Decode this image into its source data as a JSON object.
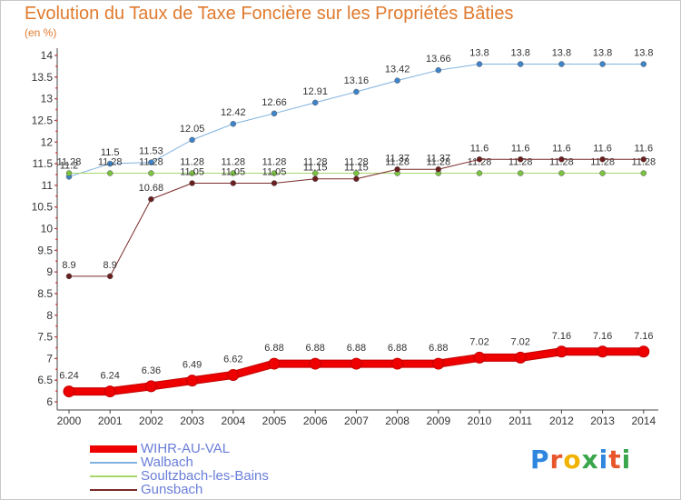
{
  "header": {
    "title": "Evolution du Taux de Taxe Foncière sur les Propriétés Bâties",
    "subtitle": "(en %)"
  },
  "logo": {
    "text": "Proxiti",
    "letter_colors": [
      "#2e86de",
      "#e8572b",
      "#f0b400",
      "#3aa64b",
      "#2e86de",
      "#e8572b",
      "#3aa64b"
    ]
  },
  "chart_data": {
    "type": "line",
    "title": "Evolution du Taux de Taxe Foncière sur les Propriétés Bâties",
    "subtitle": "(en %)",
    "x": [
      "2000",
      "2001",
      "2002",
      "2003",
      "2004",
      "2005",
      "2006",
      "2007",
      "2008",
      "2009",
      "2010",
      "2011",
      "2012",
      "2013",
      "2014"
    ],
    "ylim": [
      6,
      14
    ],
    "yticks": [
      "6",
      "6.5",
      "7",
      "7.5",
      "8",
      "8.5",
      "9",
      "9.5",
      "10",
      "10.5",
      "11",
      "11.5",
      "12",
      "12.5",
      "13",
      "13.5",
      "14"
    ],
    "grid": false,
    "legend_position": "bottom-left",
    "series": [
      {
        "name": "WIHR-AU-VAL",
        "color": "#ee0000",
        "marker_color": "#ee0000",
        "line_width": 7,
        "values": [
          6.24,
          6.24,
          6.36,
          6.49,
          6.62,
          6.88,
          6.88,
          6.88,
          6.88,
          6.88,
          7.02,
          7.02,
          7.16,
          7.16,
          7.16
        ],
        "labels": [
          "6.24",
          "6.24",
          "6.36",
          "6.49",
          "6.62",
          "6.88",
          "6.88",
          "6.88",
          "6.88",
          "6.88",
          "7.02",
          "7.02",
          "7.16",
          "7.16",
          "7.16"
        ]
      },
      {
        "name": "Walbach",
        "color": "#7fb2e0",
        "marker_color": "#3f84c9",
        "line_width": 1,
        "values": [
          11.2,
          11.5,
          11.53,
          12.05,
          12.42,
          12.66,
          12.91,
          13.16,
          13.42,
          13.66,
          13.8,
          13.8,
          13.8,
          13.8,
          13.8
        ],
        "labels": [
          "11.2",
          "11.5",
          "11.53",
          "12.05",
          "12.42",
          "12.66",
          "12.91",
          "13.16",
          "13.42",
          "13.66",
          "13.8",
          "13.8",
          "13.8",
          "13.8",
          "13.8"
        ]
      },
      {
        "name": "Soultzbach-les-Bains",
        "color": "#a8d86a",
        "marker_color": "#7cc242",
        "line_width": 1,
        "values": [
          11.28,
          11.28,
          11.28,
          11.28,
          11.28,
          11.28,
          11.28,
          11.28,
          11.28,
          11.28,
          11.28,
          11.28,
          11.28,
          11.28,
          11.28
        ],
        "labels": [
          "11.28",
          "11.28",
          "11.28",
          "11.28",
          "11.28",
          "11.28",
          "11.28",
          "11.28",
          "11.28",
          "11.28",
          "11.28",
          "11.28",
          "11.28",
          "11.28",
          "11.28"
        ]
      },
      {
        "name": "Gunsbach",
        "color": "#7a2a2a",
        "marker_color": "#6a1f1f",
        "line_width": 1,
        "values": [
          8.9,
          8.9,
          10.68,
          11.05,
          11.05,
          11.05,
          11.15,
          11.15,
          11.37,
          11.37,
          11.6,
          11.6,
          11.6,
          11.6,
          11.6
        ],
        "labels": [
          "8.9",
          "8.9",
          "10.68",
          "11.05",
          "11.05",
          "11.05",
          "11.15",
          "11.15",
          "11.37",
          "11.37",
          "11.6",
          "11.6",
          "11.6",
          "11.6",
          "11.6"
        ]
      }
    ]
  }
}
